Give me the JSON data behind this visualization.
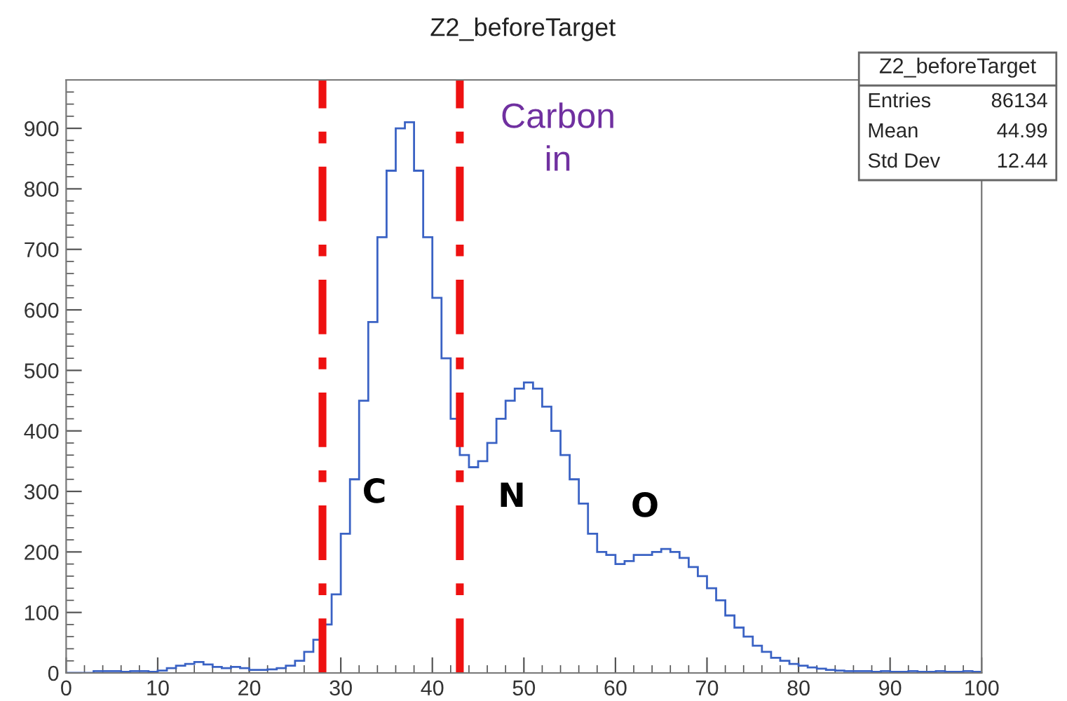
{
  "chart_data": {
    "type": "histogram",
    "title": "Z2_beforeTarget",
    "bins": [
      0,
      1,
      2,
      3,
      4,
      5,
      6,
      7,
      8,
      9,
      10,
      11,
      12,
      13,
      14,
      15,
      16,
      17,
      18,
      19,
      20,
      21,
      22,
      23,
      24,
      25,
      26,
      27,
      28,
      29,
      30,
      31,
      32,
      33,
      34,
      35,
      36,
      37,
      38,
      39,
      40,
      41,
      42,
      43,
      44,
      45,
      46,
      47,
      48,
      49,
      50,
      51,
      52,
      53,
      54,
      55,
      56,
      57,
      58,
      59,
      60,
      61,
      62,
      63,
      64,
      65,
      66,
      67,
      68,
      69,
      70,
      71,
      72,
      73,
      74,
      75,
      76,
      77,
      78,
      79,
      80,
      81,
      82,
      83,
      84,
      85,
      86,
      87,
      88,
      89,
      90,
      91,
      92,
      93,
      94,
      95,
      96,
      97,
      98,
      99,
      100
    ],
    "values": [
      0,
      0,
      0,
      3,
      3,
      3,
      2,
      3,
      3,
      2,
      4,
      8,
      12,
      15,
      18,
      14,
      10,
      8,
      10,
      8,
      5,
      5,
      6,
      8,
      12,
      20,
      35,
      55,
      80,
      130,
      230,
      320,
      450,
      580,
      720,
      830,
      900,
      910,
      830,
      720,
      620,
      520,
      420,
      360,
      340,
      350,
      380,
      420,
      450,
      470,
      480,
      470,
      440,
      400,
      360,
      320,
      280,
      230,
      200,
      195,
      180,
      185,
      195,
      195,
      200,
      205,
      200,
      190,
      175,
      160,
      140,
      120,
      95,
      75,
      60,
      45,
      35,
      25,
      20,
      15,
      12,
      9,
      7,
      5,
      4,
      3,
      3,
      3,
      2,
      3,
      2,
      2,
      3,
      2,
      2,
      3,
      2,
      2,
      3,
      2
    ],
    "color": "#3a62c4",
    "xlim": [
      0,
      100
    ],
    "xticks": [
      0,
      10,
      20,
      30,
      40,
      50,
      60,
      70,
      80,
      90,
      100
    ],
    "ylim": [
      0,
      980
    ],
    "yticks": [
      0,
      100,
      200,
      300,
      400,
      500,
      600,
      700,
      800,
      900
    ],
    "grid": false,
    "ref_lines": [
      {
        "axis": "x",
        "value": 28,
        "label": null,
        "color": "#ee1111",
        "line_style": "dashdot"
      },
      {
        "axis": "x",
        "value": 43,
        "label": null,
        "color": "#ee1111",
        "line_style": "dashdot"
      }
    ],
    "annotations": [
      "C",
      "N",
      "O",
      "Carbon\nin",
      "Z2_beforeTarget",
      "Entries 86134",
      "Mean 44.99",
      "Std Dev 12.44"
    ]
  }
}
